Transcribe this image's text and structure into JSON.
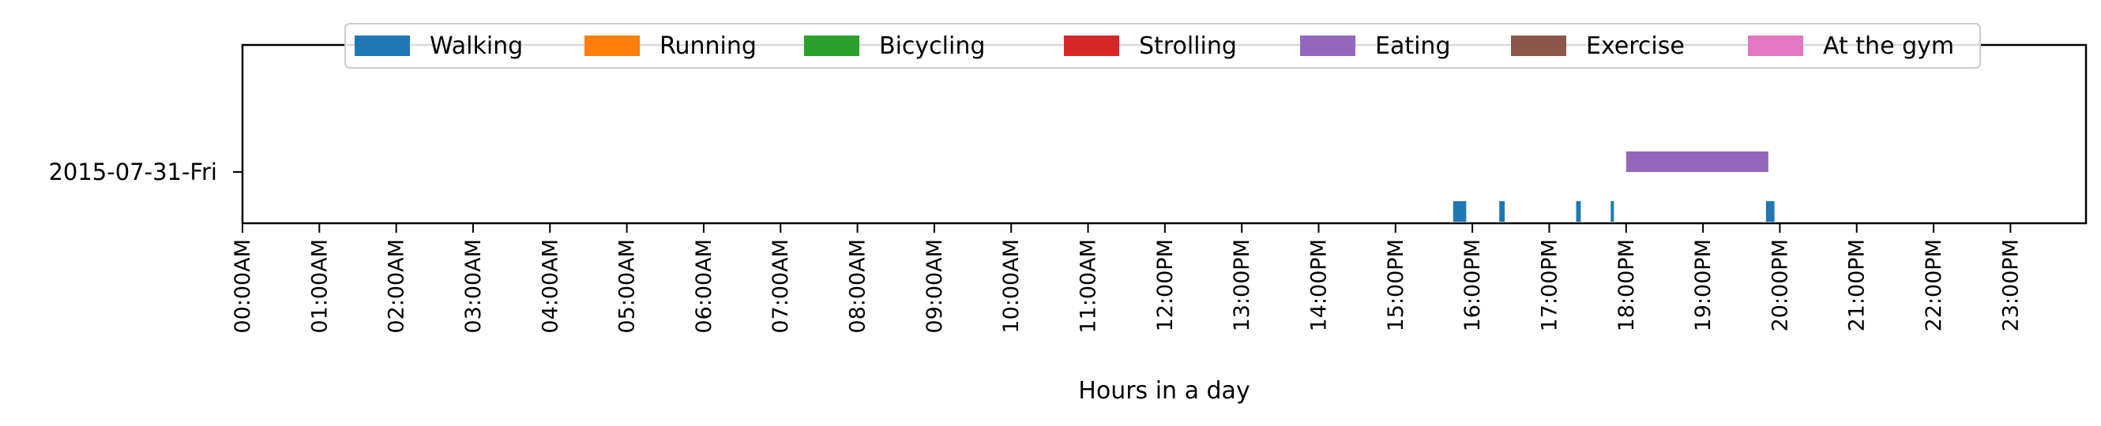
{
  "chart_data": {
    "type": "timeline",
    "xlabel": "Hours in a day",
    "xlim": [
      0,
      24
    ],
    "x_ticks": [
      "00:00AM",
      "01:00AM",
      "02:00AM",
      "03:00AM",
      "04:00AM",
      "05:00AM",
      "06:00AM",
      "07:00AM",
      "08:00AM",
      "09:00AM",
      "10:00AM",
      "11:00AM",
      "12:00PM",
      "13:00PM",
      "14:00PM",
      "15:00PM",
      "16:00PM",
      "17:00PM",
      "18:00PM",
      "19:00PM",
      "20:00PM",
      "21:00PM",
      "22:00PM",
      "23:00PM"
    ],
    "y_categories": [
      "2015-07-31-Fri"
    ],
    "legend": [
      {
        "label": "Walking",
        "color": "#1f77b4"
      },
      {
        "label": "Running",
        "color": "#ff7f0e"
      },
      {
        "label": "Bicycling",
        "color": "#2ca02c"
      },
      {
        "label": "Strolling",
        "color": "#d62728"
      },
      {
        "label": "Eating",
        "color": "#9467bd"
      },
      {
        "label": "Exercise",
        "color": "#8c564b"
      },
      {
        "label": "At the gym",
        "color": "#e377c2"
      }
    ],
    "legend_position": "upper center",
    "grid": false,
    "events": [
      {
        "day": "2015-07-31-Fri",
        "activity": "Walking",
        "start": 15.75,
        "end": 15.92
      },
      {
        "day": "2015-07-31-Fri",
        "activity": "Walking",
        "start": 16.35,
        "end": 16.42
      },
      {
        "day": "2015-07-31-Fri",
        "activity": "Walking",
        "start": 17.35,
        "end": 17.41
      },
      {
        "day": "2015-07-31-Fri",
        "activity": "Walking",
        "start": 17.8,
        "end": 17.84
      },
      {
        "day": "2015-07-31-Fri",
        "activity": "Walking",
        "start": 19.82,
        "end": 19.93
      },
      {
        "day": "2015-07-31-Fri",
        "activity": "Eating",
        "start": 18.0,
        "end": 19.85
      }
    ]
  }
}
